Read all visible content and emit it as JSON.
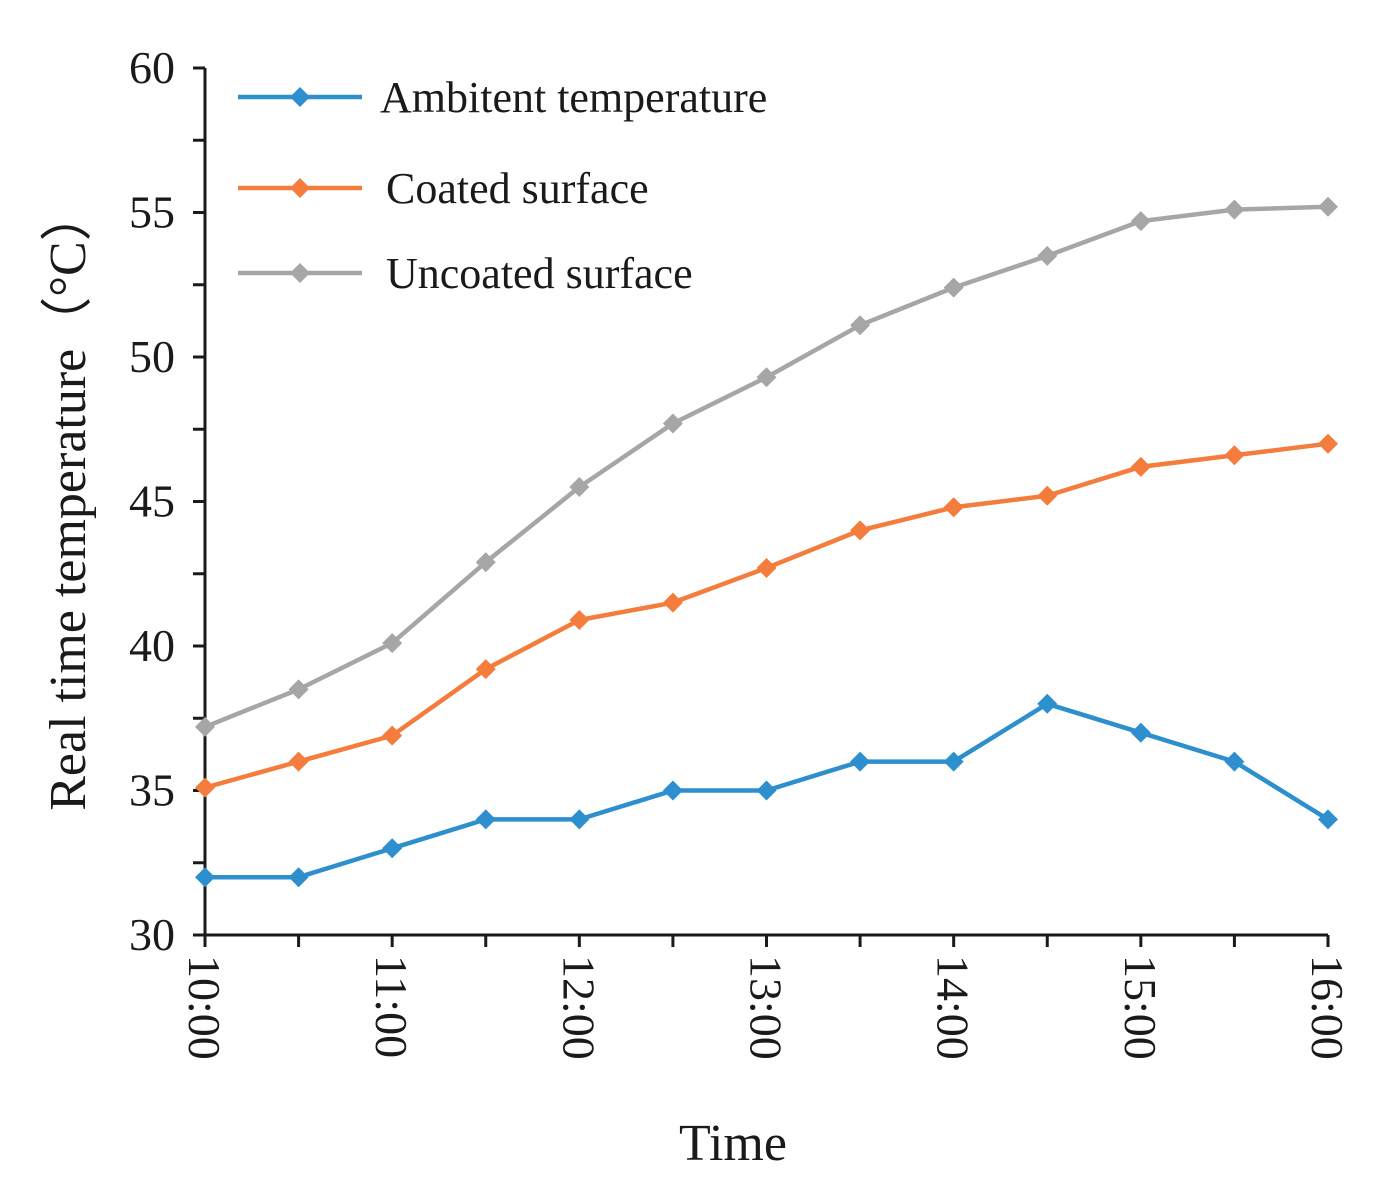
{
  "chart_data": {
    "type": "line",
    "x": [
      "10:00",
      "10:30",
      "11:00",
      "11:30",
      "12:00",
      "12:30",
      "13:00",
      "13:30",
      "14:00",
      "14:30",
      "15:00",
      "15:30",
      "16:00"
    ],
    "x_tick_labels": [
      "10:00",
      "11:00",
      "12:00",
      "13:00",
      "14:00",
      "15:00",
      "16:00"
    ],
    "xlabel": "Time",
    "ylabel": "Real time temperature（°C）",
    "ylim": [
      30,
      60
    ],
    "y_ticks": [
      "30",
      "35",
      "40",
      "45",
      "50",
      "55",
      "60"
    ],
    "grid": false,
    "legend_position": "top-left",
    "series": [
      {
        "name": "Ambitent temperature",
        "color": "#2e8fce",
        "values": [
          32,
          32,
          33,
          34,
          34,
          35,
          35,
          36,
          36,
          38,
          37,
          36,
          34
        ]
      },
      {
        "name": "Coated surface",
        "color": "#f47c3c",
        "values": [
          35.1,
          36,
          36.9,
          39.2,
          40.9,
          41.5,
          42.7,
          44,
          44.8,
          45.2,
          46.2,
          46.6,
          47
        ]
      },
      {
        "name": "Uncoated surface",
        "color": "#a6a6a6",
        "values": [
          37.2,
          38.5,
          40.1,
          42.9,
          45.5,
          47.7,
          49.3,
          51.1,
          52.4,
          53.5,
          54.7,
          55.1,
          55.2
        ]
      }
    ]
  }
}
